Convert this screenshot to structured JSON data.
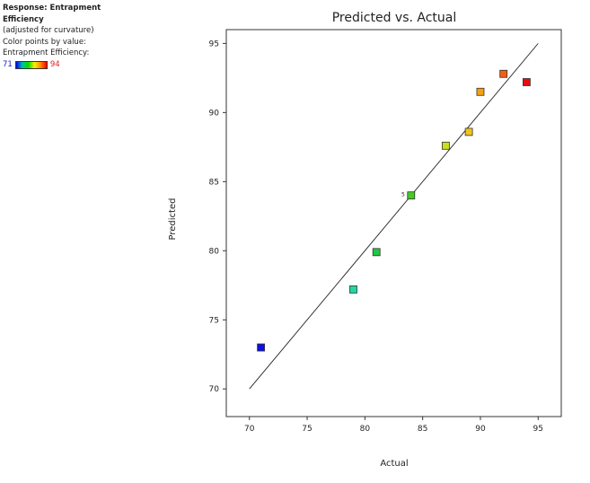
{
  "legend": {
    "response_title": "Response: Entrapment Efficiency",
    "note": "(adjusted for curvature)",
    "color_points_label": "Color points by value:",
    "variable_label": "Entrapment Efficiency:",
    "scale_min": "71",
    "scale_max": "94",
    "scale_colors": [
      "#0000ff",
      "#00c0a0",
      "#00dd00",
      "#ffee00",
      "#ff8800",
      "#ff0000"
    ]
  },
  "chart_data": {
    "type": "scatter",
    "title": "Predicted vs. Actual",
    "xlabel": "Actual",
    "ylabel": "Predicted",
    "xlim": [
      68,
      97
    ],
    "ylim": [
      68,
      96
    ],
    "xticks": [
      70,
      75,
      80,
      85,
      90,
      95
    ],
    "yticks": [
      70,
      75,
      80,
      85,
      90,
      95
    ],
    "reference_line": {
      "from": [
        70,
        70
      ],
      "to": [
        95,
        95
      ]
    },
    "points": [
      {
        "x": 71,
        "y": 73.0,
        "color": "#1010e0"
      },
      {
        "x": 79,
        "y": 77.2,
        "color": "#20d8a0"
      },
      {
        "x": 81,
        "y": 79.9,
        "color": "#20c840"
      },
      {
        "x": 84,
        "y": 84.0,
        "color": "#44cc22",
        "annotation": "5"
      },
      {
        "x": 87,
        "y": 87.6,
        "color": "#c8e020"
      },
      {
        "x": 89,
        "y": 88.6,
        "color": "#f2c418"
      },
      {
        "x": 90,
        "y": 91.5,
        "color": "#f5a011"
      },
      {
        "x": 92,
        "y": 92.8,
        "color": "#f26010"
      },
      {
        "x": 94,
        "y": 92.2,
        "color": "#e80c0c"
      }
    ]
  }
}
